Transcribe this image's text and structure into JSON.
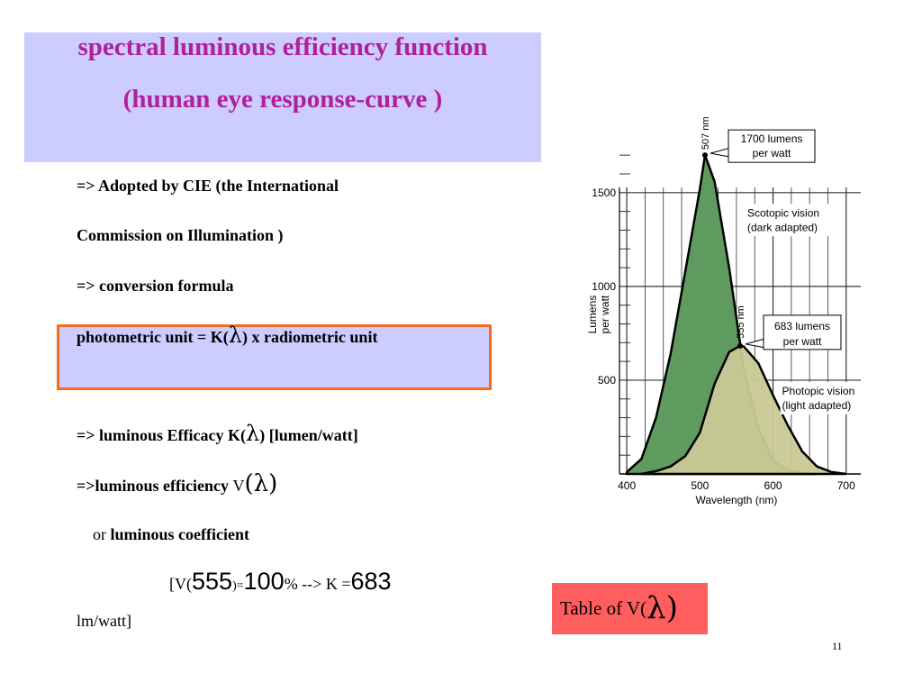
{
  "title": {
    "line1": "spectral luminous efficiency function",
    "line2": "(human eye  response-curve )"
  },
  "body": {
    "l1": "=> Adopted by CIE (the International",
    "l2": "Commission on Illumination  )",
    "l3": "=> conversion formula",
    "l4a": "photometric unit =  K(",
    "l4lam": "λ",
    "l4b": ") x radiometric unit",
    "l5a": "=>  luminous Efficacy    K(",
    "l5lam": "λ",
    "l5b": ") [lumen/watt]",
    "l6a": "=>luminous efficiency ",
    "l6v": "V",
    "l6lam": "(λ)",
    "l7a": "or ",
    "l7b": "luminous coefficient",
    "l8a": "[V(",
    "l8b": "555",
    "l8c": ")=",
    "l8d": "100",
    "l8e": "%   -->  K =",
    "l8f": "683",
    "l9": "lm/watt]"
  },
  "table_button": {
    "label": "Table of V(",
    "lam": "λ",
    "close": ")"
  },
  "page_number": "11",
  "chart_data": {
    "type": "area",
    "xlabel": "Wavelength (nm)",
    "ylabel": "Lumens per watt",
    "xlim": [
      390,
      720
    ],
    "ylim": [
      0,
      1720
    ],
    "xticks": [
      400,
      500,
      600,
      700
    ],
    "yticks": [
      500,
      1000,
      1500
    ],
    "grid": true,
    "series": [
      {
        "name": "Scotopic vision (dark adapted)",
        "color": "#5f9a5f",
        "x": [
          400,
          420,
          440,
          460,
          480,
          500,
          507,
          520,
          540,
          560,
          580,
          600,
          620,
          640,
          660
        ],
        "y": [
          10,
          80,
          300,
          640,
          1080,
          1520,
          1700,
          1560,
          1100,
          560,
          240,
          70,
          20,
          5,
          0
        ]
      },
      {
        "name": "Photopic vision (light adapted)",
        "color": "#c9c996",
        "x": [
          420,
          440,
          460,
          480,
          500,
          520,
          540,
          555,
          560,
          580,
          600,
          620,
          640,
          660,
          680,
          700
        ],
        "y": [
          0,
          15,
          40,
          95,
          220,
          480,
          650,
          683,
          680,
          590,
          420,
          260,
          120,
          40,
          10,
          0
        ]
      }
    ],
    "annotations": [
      {
        "text": "507 nm"
      },
      {
        "text": "1700 lumens",
        "text2": "per watt"
      },
      {
        "text": "Scotopic vision",
        "text2": "(dark adapted)"
      },
      {
        "text": "555 nm"
      },
      {
        "text": "683 lumens",
        "text2": "per watt"
      },
      {
        "text": "Photopic vision",
        "text2": "(light adapted)"
      }
    ],
    "ylabel_line1": "Lumens",
    "ylabel_line2": "per watt"
  }
}
